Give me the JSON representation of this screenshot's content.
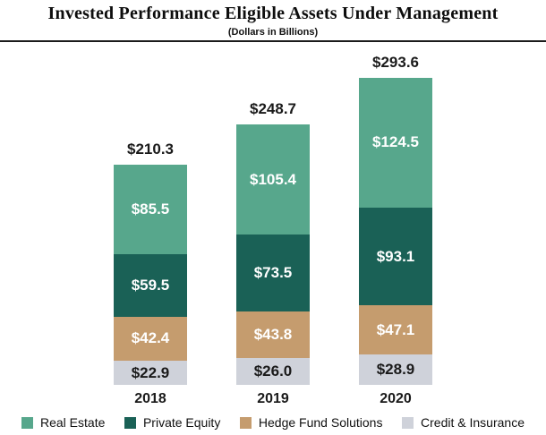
{
  "header": {
    "title": "Invested Performance Eligible Assets Under Management",
    "subtitle": "(Dollars in Billions)"
  },
  "chart_data": {
    "type": "bar",
    "stacked": true,
    "title": "Invested Performance Eligible Assets Under Management",
    "subtitle": "(Dollars in Billions)",
    "xlabel": "",
    "ylabel": "",
    "grid": false,
    "axes_hidden": true,
    "legend_position": "bottom",
    "categories": [
      "2018",
      "2019",
      "2020"
    ],
    "totals": [
      210.3,
      248.7,
      293.6
    ],
    "total_labels": [
      "$210.3",
      "$248.7",
      "$293.6"
    ],
    "series": [
      {
        "name": "Real Estate",
        "color": "#57A78C",
        "label_color": "#ffffff",
        "values": [
          85.5,
          105.4,
          124.5
        ],
        "labels": [
          "$85.5",
          "$105.4",
          "$124.5"
        ]
      },
      {
        "name": "Private Equity",
        "color": "#1A6156",
        "label_color": "#ffffff",
        "values": [
          59.5,
          73.5,
          93.1
        ],
        "labels": [
          "$59.5",
          "$73.5",
          "$93.1"
        ]
      },
      {
        "name": "Hedge Fund Solutions",
        "color": "#C59C6E",
        "label_color": "#ffffff",
        "values": [
          42.4,
          43.8,
          47.1
        ],
        "labels": [
          "$42.4",
          "$43.8",
          "$47.1"
        ]
      },
      {
        "name": "Credit & Insurance",
        "color": "#CFD2DA",
        "label_color": "#1A1A1A",
        "values": [
          22.9,
          26.0,
          28.9
        ],
        "labels": [
          "$22.9",
          "$26.0",
          "$28.9"
        ]
      }
    ]
  }
}
